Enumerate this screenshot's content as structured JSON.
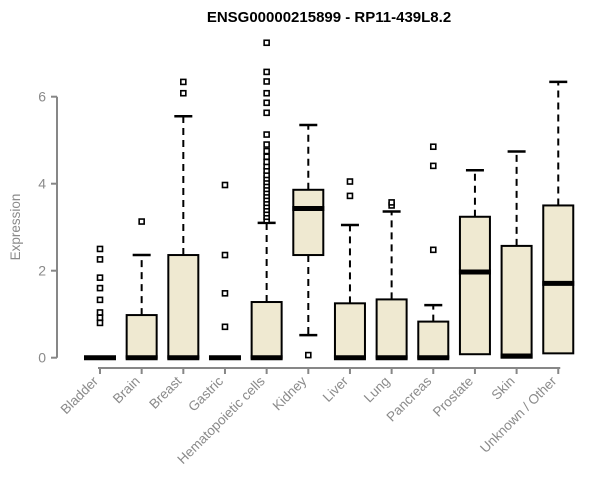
{
  "chart_data": {
    "type": "boxplot",
    "title": "ENSG00000215899 - RP11-439L8.2",
    "ylabel": "Expression",
    "xlabel": "",
    "ylim": [
      0,
      7.4
    ],
    "yticks": [
      0,
      2,
      4,
      6
    ],
    "grid": false,
    "legend": "none",
    "categories": [
      "Bladder",
      "Brain",
      "Breast",
      "Gastric",
      "Hematopoietic cells",
      "Kidney",
      "Liver",
      "Lung",
      "Pancreas",
      "Prostate",
      "Skin",
      "Unknown / Other"
    ],
    "series": [
      {
        "name": "Bladder",
        "q1": 0,
        "median": 0,
        "q3": 0,
        "whisker_low": 0,
        "whisker_high": 0,
        "outliers": [
          0.8,
          0.92,
          1.04,
          1.33,
          1.6,
          1.84,
          2.26,
          2.5
        ]
      },
      {
        "name": "Brain",
        "q1": 0,
        "median": 0,
        "q3": 0.98,
        "whisker_low": 0,
        "whisker_high": 2.36,
        "outliers": [
          3.13
        ]
      },
      {
        "name": "Breast",
        "q1": 0,
        "median": 0,
        "q3": 2.36,
        "whisker_low": 0,
        "whisker_high": 5.55,
        "outliers": [
          6.08,
          6.34
        ]
      },
      {
        "name": "Gastric",
        "q1": 0,
        "median": 0,
        "q3": 0,
        "whisker_low": 0,
        "whisker_high": 0,
        "outliers": [
          0.71,
          1.48,
          2.36,
          3.97
        ]
      },
      {
        "name": "Hematopoietic cells",
        "q1": 0,
        "median": 0,
        "q3": 1.28,
        "whisker_low": 0,
        "whisker_high": 3.1,
        "outliers": [
          3.16,
          3.24,
          3.32,
          3.4,
          3.48,
          3.56,
          3.64,
          3.72,
          3.8,
          3.88,
          3.96,
          4.04,
          4.12,
          4.2,
          4.3,
          4.4,
          4.5,
          4.62,
          4.75,
          4.9,
          5.13,
          5.63,
          5.86,
          6.08,
          6.35,
          6.57,
          7.24
        ]
      },
      {
        "name": "Kidney",
        "q1": 2.36,
        "median": 3.43,
        "q3": 3.86,
        "whisker_low": 0.52,
        "whisker_high": 5.35,
        "outliers": [
          0.06
        ]
      },
      {
        "name": "Liver",
        "q1": 0,
        "median": 0,
        "q3": 1.25,
        "whisker_low": 0,
        "whisker_high": 3.05,
        "outliers": [
          3.72,
          4.05
        ]
      },
      {
        "name": "Lung",
        "q1": 0,
        "median": 0,
        "q3": 1.34,
        "whisker_low": 0,
        "whisker_high": 3.36,
        "outliers": [
          3.5,
          3.57
        ]
      },
      {
        "name": "Pancreas",
        "q1": 0,
        "median": 0,
        "q3": 0.83,
        "whisker_low": 0,
        "whisker_high": 1.21,
        "outliers": [
          2.48,
          4.41,
          4.85
        ]
      },
      {
        "name": "Prostate",
        "q1": 0.08,
        "median": 1.97,
        "q3": 3.24,
        "whisker_low": 0.08,
        "whisker_high": 4.31,
        "outliers": []
      },
      {
        "name": "Skin",
        "q1": 0,
        "median": 0.04,
        "q3": 2.57,
        "whisker_low": 0,
        "whisker_high": 4.74,
        "outliers": []
      },
      {
        "name": "Unknown / Other",
        "q1": 0.1,
        "median": 1.71,
        "q3": 3.5,
        "whisker_low": 0.1,
        "whisker_high": 6.34,
        "outliers": []
      }
    ],
    "colors": {
      "box_fill": "#efe9d1",
      "box_border": "#000000",
      "median": "#000000",
      "whisker": "#000000",
      "outlier_border": "#000000",
      "axis": "#878787",
      "tick_label": "#8a8a8a",
      "title": "#000000",
      "background": "#ffffff"
    }
  }
}
